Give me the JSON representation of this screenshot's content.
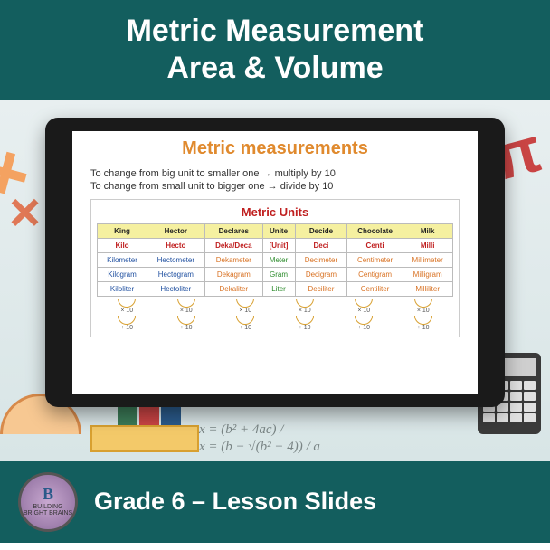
{
  "header": {
    "line1": "Metric Measurement",
    "line2": "Area & Volume"
  },
  "slide": {
    "title": "Metric measurements",
    "rule1": "To change from big unit to smaller one  → multiply by 10",
    "rule2": "To change from small unit to bigger one → divide by 10",
    "table_title": "Metric Units",
    "headers": [
      "King",
      "Hector",
      "Declares",
      "Unite",
      "Decide",
      "Chocolate",
      "Milk"
    ],
    "prefixes": [
      "Kilo",
      "Hecto",
      "Deka/Deca",
      "[Unit]",
      "Deci",
      "Centi",
      "Milli"
    ],
    "rows": [
      [
        "Kilometer",
        "Hectometer",
        "Dekameter",
        "Meter",
        "Decimeter",
        "Centimeter",
        "Millimeter"
      ],
      [
        "Kilogram",
        "Hectogram",
        "Dekagram",
        "Gram",
        "Decigram",
        "Centigram",
        "Milligram"
      ],
      [
        "Kiloliter",
        "Hectoliter",
        "Dekaliter",
        "Liter",
        "Deciliter",
        "Centiliter",
        "Milliliter"
      ]
    ],
    "mult_label": "× 10",
    "div_label": "÷ 10"
  },
  "formulas": {
    "f1": "x = (b² + 4ac) / ",
    "f2": "x = (b − √(b² − 4)) / a"
  },
  "footer": {
    "logo_text": "BUILDING BRIGHT BRAINS",
    "text": "Grade 6 – Lesson Slides"
  },
  "colors": {
    "header_bg": "#135e5e",
    "accent": "#e08a2e",
    "red": "#c02020"
  }
}
